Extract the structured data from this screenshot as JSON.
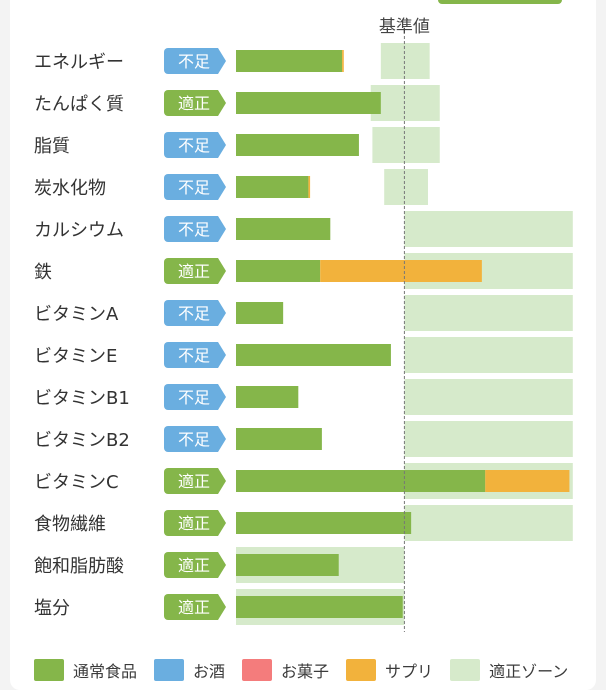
{
  "colors": {
    "normal_food": "#85b64a",
    "alcohol": "#6aaee0",
    "sweets": "#f47c7c",
    "supplement": "#f2b23c",
    "zone": "#d6eacb",
    "badge_short": "#6aaee0",
    "badge_ok": "#85b64a"
  },
  "chart_data": {
    "type": "bar",
    "orientation": "horizontal",
    "stacked": true,
    "reference_label": "基準値",
    "reference_value": 100,
    "xlim": [
      0,
      200
    ],
    "categories": [
      "エネルギー",
      "たんぱく質",
      "脂質",
      "炭水化物",
      "カルシウム",
      "鉄",
      "ビタミンA",
      "ビタミンE",
      "ビタミンB1",
      "ビタミンB2",
      "ビタミンC",
      "食物繊維",
      "飽和脂肪酸",
      "塩分"
    ],
    "status": [
      "不足",
      "適正",
      "不足",
      "不足",
      "不足",
      "適正",
      "不足",
      "不足",
      "不足",
      "不足",
      "適正",
      "適正",
      "適正",
      "適正"
    ],
    "series": [
      {
        "name": "通常食品",
        "color": "#85b64a",
        "values": [
          63,
          86,
          73,
          43,
          56,
          50,
          28,
          92,
          37,
          51,
          148,
          104,
          61,
          99
        ]
      },
      {
        "name": "お酒",
        "color": "#6aaee0",
        "values": [
          0,
          0,
          0,
          0,
          0,
          0,
          0,
          0,
          0,
          0,
          0,
          0,
          0,
          0
        ]
      },
      {
        "name": "お菓子",
        "color": "#f47c7c",
        "values": [
          0,
          0,
          0,
          0,
          0,
          0,
          0,
          0,
          0,
          0,
          0,
          0,
          0,
          0
        ]
      },
      {
        "name": "サプリ",
        "color": "#f2b23c",
        "values": [
          1,
          0,
          0,
          1,
          0,
          96,
          0,
          0,
          0,
          0,
          50,
          0,
          0,
          0
        ]
      }
    ],
    "zones": [
      [
        86,
        115
      ],
      [
        80,
        121
      ],
      [
        81,
        121
      ],
      [
        88,
        114
      ],
      [
        100,
        200
      ],
      [
        100,
        200
      ],
      [
        100,
        200
      ],
      [
        100,
        200
      ],
      [
        100,
        200
      ],
      [
        100,
        200
      ],
      [
        100,
        200
      ],
      [
        100,
        200
      ],
      [
        0,
        100
      ],
      [
        0,
        100
      ]
    ],
    "legend": [
      "通常食品",
      "お酒",
      "お菓子",
      "サプリ",
      "適正ゾーン"
    ]
  }
}
